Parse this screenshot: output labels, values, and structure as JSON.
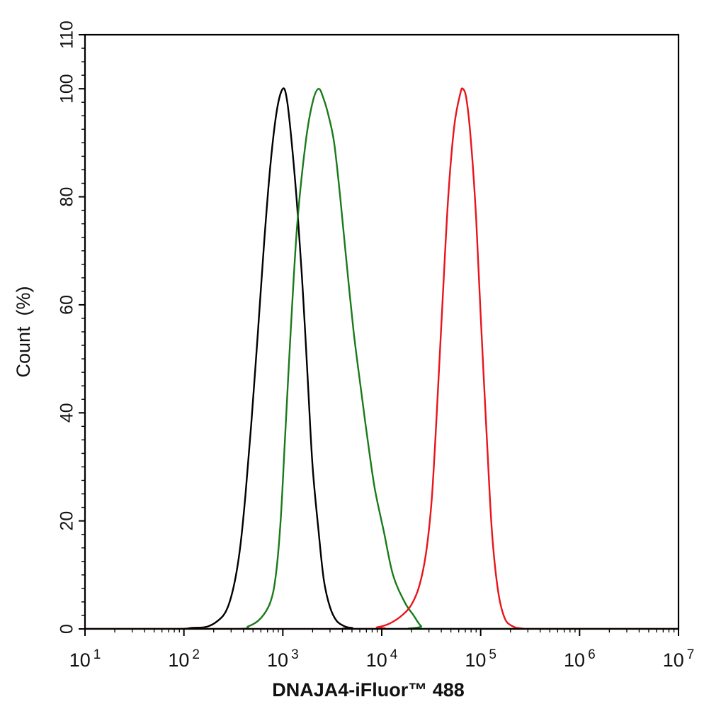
{
  "chart_data": {
    "type": "line",
    "title": "",
    "xlabel": "DNAJA4-iFluor™ 488",
    "ylabel": "Count  (%)",
    "xscale": "log",
    "xlim": [
      10,
      10000000
    ],
    "ylim": [
      0,
      110
    ],
    "yticks": [
      0,
      20,
      40,
      60,
      80,
      100,
      110
    ],
    "xticks": [
      {
        "value": 10,
        "base": "10",
        "exp": "1"
      },
      {
        "value": 100,
        "base": "10",
        "exp": "2"
      },
      {
        "value": 1000,
        "base": "10",
        "exp": "3"
      },
      {
        "value": 10000,
        "base": "10",
        "exp": "4"
      },
      {
        "value": 100000,
        "base": "10",
        "exp": "5"
      },
      {
        "value": 1000000,
        "base": "10",
        "exp": "6"
      },
      {
        "value": 10000000,
        "base": "10",
        "exp": "7"
      }
    ],
    "grid": false,
    "legend": "none",
    "series": [
      {
        "color": "#000000",
        "points": [
          [
            10,
            0
          ],
          [
            80,
            0
          ],
          [
            120,
            0.2
          ],
          [
            170,
            0.4
          ],
          [
            220,
            1.5
          ],
          [
            270,
            3.5
          ],
          [
            320,
            8
          ],
          [
            370,
            15
          ],
          [
            420,
            25
          ],
          [
            480,
            38
          ],
          [
            560,
            55
          ],
          [
            650,
            72
          ],
          [
            750,
            86
          ],
          [
            870,
            96
          ],
          [
            1000,
            100
          ],
          [
            1100,
            98
          ],
          [
            1230,
            90
          ],
          [
            1400,
            78
          ],
          [
            1600,
            62
          ],
          [
            1800,
            45
          ],
          [
            2000,
            30
          ],
          [
            2300,
            18
          ],
          [
            2600,
            9
          ],
          [
            3000,
            4
          ],
          [
            3500,
            1.5
          ],
          [
            4200,
            0.5
          ],
          [
            5000,
            0.2
          ],
          [
            8000,
            0
          ],
          [
            10000000,
            0
          ]
        ]
      },
      {
        "color": "#1a7a1a",
        "points": [
          [
            10,
            0
          ],
          [
            300,
            0
          ],
          [
            450,
            0.5
          ],
          [
            600,
            2
          ],
          [
            750,
            5
          ],
          [
            850,
            10
          ],
          [
            950,
            20
          ],
          [
            1050,
            35
          ],
          [
            1200,
            55
          ],
          [
            1400,
            75
          ],
          [
            1700,
            90
          ],
          [
            2000,
            97.5
          ],
          [
            2300,
            100
          ],
          [
            2600,
            98
          ],
          [
            2900,
            95
          ],
          [
            3300,
            90
          ],
          [
            3800,
            80
          ],
          [
            4400,
            68
          ],
          [
            5200,
            55
          ],
          [
            6200,
            44
          ],
          [
            7200,
            35
          ],
          [
            8500,
            26
          ],
          [
            10500,
            18
          ],
          [
            13000,
            10
          ],
          [
            17000,
            5
          ],
          [
            21000,
            2.5
          ],
          [
            25000,
            0.5
          ],
          [
            30000,
            0
          ],
          [
            10000000,
            0
          ]
        ]
      },
      {
        "color": "#e8141b",
        "points": [
          [
            10,
            0
          ],
          [
            6000,
            0
          ],
          [
            9000,
            0.3
          ],
          [
            12000,
            1
          ],
          [
            16000,
            2.5
          ],
          [
            20000,
            4.5
          ],
          [
            24000,
            8
          ],
          [
            28000,
            14
          ],
          [
            32000,
            24
          ],
          [
            36000,
            40
          ],
          [
            41000,
            60
          ],
          [
            47000,
            80
          ],
          [
            54000,
            93
          ],
          [
            62000,
            99
          ],
          [
            66000,
            100
          ],
          [
            72000,
            98
          ],
          [
            80000,
            90
          ],
          [
            90000,
            76
          ],
          [
            100000,
            58
          ],
          [
            115000,
            36
          ],
          [
            130000,
            18
          ],
          [
            150000,
            7
          ],
          [
            175000,
            2
          ],
          [
            210000,
            0.5
          ],
          [
            260000,
            0.1
          ],
          [
            400000,
            0
          ],
          [
            10000000,
            0
          ]
        ]
      }
    ]
  }
}
